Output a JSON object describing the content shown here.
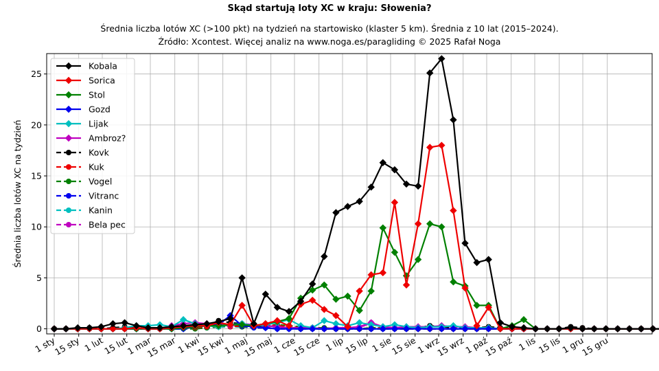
{
  "chart_data": {
    "type": "line",
    "title": "Skąd startują loty XC w kraju: Słowenia?",
    "subtitle_line1": "Średnia liczba lotów XC (>100 pkt) na tydzień na startowisko (klaster 5 km). Średnia z 10 lat (2015–2024).",
    "subtitle_line2": "Źródło: Xcontest. Więcej analiz na www.noga.es/paragliding © 2025 Rafał Noga",
    "ylabel": "Średnia liczba lotów XC na tydzień",
    "xlabel": "",
    "ylim": [
      -0.5,
      27
    ],
    "yticks": [
      0,
      5,
      10,
      15,
      20,
      25
    ],
    "grid": true,
    "legend_position": "top-left",
    "x_ticks": [
      "1 sty",
      "15 sty",
      "1 lut",
      "15 lut",
      "1 mar",
      "15 mar",
      "1 kwi",
      "15 kwi",
      "1 maj",
      "15 maj",
      "1 cze",
      "15 cze",
      "1 lip",
      "15 lip",
      "1 sie",
      "15 sie",
      "1 wrz",
      "15 wrz",
      "1 paź",
      "15 paź",
      "1 lis",
      "15 lis",
      "1 gru",
      "15 gru"
    ],
    "series": [
      {
        "name": "Kobala",
        "color": "#000000",
        "style": "solid",
        "marker": "diamond",
        "values": [
          0,
          0,
          0.1,
          0.1,
          0.2,
          0.5,
          0.6,
          0.3,
          0.1,
          0.1,
          0.2,
          0.3,
          0.4,
          0.5,
          0.7,
          1.0,
          5.0,
          0.5,
          3.4,
          2.1,
          1.7,
          2.7,
          4.4,
          7.1,
          11.4,
          12.0,
          12.5,
          13.9,
          16.3,
          15.6,
          14.2,
          14.0,
          25.1,
          26.5,
          20.5,
          8.4,
          6.5,
          6.8,
          0.6,
          0.2,
          0.1,
          0,
          0,
          0,
          0.1,
          0,
          0,
          0,
          0,
          0,
          0,
          0,
          0
        ]
      },
      {
        "name": "Sorica",
        "color": "#ee0000",
        "style": "solid",
        "marker": "diamond",
        "values": [
          0,
          0,
          0,
          0,
          0,
          0,
          0,
          0.1,
          0,
          0,
          0.1,
          0.2,
          0.3,
          0.3,
          0.6,
          0.4,
          2.3,
          0.3,
          0.5,
          0.8,
          0.3,
          2.4,
          2.8,
          1.9,
          1.3,
          0.2,
          3.7,
          5.3,
          5.5,
          12.4,
          4.3,
          10.3,
          17.8,
          18.0,
          11.6,
          4.0,
          0.3,
          2.1,
          0,
          0,
          0,
          0,
          0,
          0,
          0,
          0,
          0,
          0,
          0,
          0,
          0,
          0,
          0
        ]
      },
      {
        "name": "Stol",
        "color": "#008000",
        "style": "solid",
        "marker": "diamond",
        "values": [
          0,
          0,
          0,
          0,
          0,
          0,
          0,
          0,
          0,
          0,
          0,
          0.1,
          0.2,
          0.3,
          0.3,
          0.4,
          0.4,
          0.3,
          0.5,
          0.7,
          1.0,
          3.0,
          3.8,
          4.3,
          2.9,
          3.2,
          1.8,
          3.7,
          9.9,
          7.5,
          5.2,
          6.8,
          10.3,
          10.0,
          4.6,
          4.2,
          2.3,
          2.3,
          0,
          0.3,
          0.9,
          0,
          0,
          0,
          0,
          0,
          0,
          0,
          0,
          0,
          0,
          0,
          0
        ]
      },
      {
        "name": "Gozd",
        "color": "#0000ee",
        "style": "solid",
        "marker": "diamond",
        "values": [
          0,
          0,
          0,
          0,
          0,
          0,
          0,
          0,
          0,
          0,
          0,
          0,
          0.2,
          0.3,
          0.4,
          1.3,
          0.3,
          0.2,
          0.1,
          0,
          0,
          0,
          0,
          0,
          0,
          0,
          0,
          0,
          0,
          0,
          0,
          0,
          0,
          0,
          0,
          0,
          0,
          0,
          0,
          0,
          0,
          0,
          0,
          0,
          0,
          0,
          0,
          0,
          0,
          0,
          0,
          0,
          0
        ]
      },
      {
        "name": "Lijak",
        "color": "#00bfbf",
        "style": "solid",
        "marker": "diamond",
        "values": [
          0,
          0,
          0,
          0,
          0,
          0,
          0.1,
          0.3,
          0.3,
          0.4,
          0.2,
          0.9,
          0.5,
          0.3,
          0.2,
          0.4,
          0.5,
          0.3,
          0.4,
          0.6,
          0.9,
          0.3,
          0.1,
          0.8,
          0.5,
          0.3,
          0.6,
          0.4,
          0.2,
          0.4,
          0.2,
          0.1,
          0.2,
          0.2,
          0.3,
          0.1,
          0.1,
          0.1,
          0,
          0,
          0,
          0,
          0,
          0,
          0,
          0,
          0,
          0,
          0,
          0,
          0,
          0,
          0
        ]
      },
      {
        "name": "Ambroz?",
        "color": "#bf00bf",
        "style": "solid",
        "marker": "diamond",
        "values": [
          0,
          0,
          0,
          0,
          0,
          0,
          0,
          0,
          0,
          0,
          0.3,
          0.5,
          0.6,
          0.5,
          0.4,
          0.3,
          0.5,
          0.4,
          0.3,
          0.2,
          0.1,
          0.1,
          0.1,
          0,
          0.1,
          0.1,
          0.2,
          0.6,
          0.2,
          0.1,
          0.2,
          0.2,
          0.2,
          0.3,
          0.2,
          0.2,
          0.1,
          0.1,
          0,
          0,
          0,
          0,
          0,
          0,
          0,
          0,
          0,
          0,
          0,
          0,
          0,
          0,
          0
        ]
      },
      {
        "name": "Kovk",
        "color": "#000000",
        "style": "dashed",
        "marker": "circle",
        "values": [
          0,
          0,
          0,
          0.1,
          0,
          0.1,
          0.2,
          0.1,
          0,
          0,
          0.1,
          0.2,
          0.2,
          0.3,
          0.8,
          0.6,
          0.5,
          0.2,
          0.3,
          0.2,
          0.1,
          0,
          0,
          0,
          0,
          0,
          0,
          0,
          0,
          0,
          0,
          0.1,
          0.3,
          0.2,
          0.1,
          0.1,
          0.1,
          0.2,
          0.1,
          0,
          0,
          0,
          0,
          0,
          0.2,
          0.1,
          0,
          0,
          0,
          0,
          0,
          0,
          0
        ]
      },
      {
        "name": "Kuk",
        "color": "#ee0000",
        "style": "dashed",
        "marker": "circle",
        "values": [
          0,
          0,
          0,
          0,
          0,
          0,
          0,
          0,
          0,
          0,
          0.1,
          0.2,
          0.1,
          0.2,
          0.5,
          0.2,
          0.3,
          0.3,
          0.4,
          0.3,
          0.2,
          0.1,
          0.1,
          0,
          0,
          0,
          0,
          0,
          0.1,
          0,
          0,
          0,
          0,
          0,
          0,
          0,
          0,
          0,
          0,
          0,
          0,
          0,
          0,
          0,
          0,
          0,
          0,
          0,
          0,
          0,
          0,
          0,
          0
        ]
      },
      {
        "name": "Vogel",
        "color": "#008000",
        "style": "dashed",
        "marker": "circle",
        "values": [
          0,
          0,
          0,
          0,
          0,
          0,
          0,
          0,
          0,
          0,
          0,
          0,
          0,
          0.1,
          0.2,
          0.3,
          0.2,
          0.2,
          0.3,
          0.4,
          0.3,
          0.2,
          0.1,
          0.1,
          0,
          0,
          0,
          0.1,
          0.1,
          0.1,
          0,
          0,
          0,
          0,
          0,
          0,
          0,
          0,
          0,
          0,
          0,
          0,
          0,
          0,
          0,
          0,
          0,
          0,
          0,
          0,
          0,
          0,
          0
        ]
      },
      {
        "name": "Vitranc",
        "color": "#0000ee",
        "style": "dashed",
        "marker": "circle",
        "values": [
          0,
          0,
          0,
          0,
          0,
          0,
          0,
          0,
          0,
          0,
          0,
          0,
          0.1,
          0.1,
          0.2,
          0.4,
          0.2,
          0.1,
          0.1,
          0,
          0,
          0,
          0,
          0,
          0,
          0,
          0,
          0,
          0,
          0,
          0,
          0,
          0,
          0,
          0,
          0,
          0,
          0,
          0,
          0,
          0,
          0,
          0,
          0,
          0,
          0,
          0,
          0,
          0,
          0,
          0,
          0,
          0
        ]
      },
      {
        "name": "Kanin",
        "color": "#00bfbf",
        "style": "dashed",
        "marker": "circle",
        "values": [
          0,
          0,
          0,
          0,
          0,
          0,
          0,
          0,
          0,
          0,
          0,
          0,
          0,
          0.1,
          0.2,
          0.2,
          0.2,
          0.1,
          0.1,
          0,
          0,
          0,
          0,
          0,
          0,
          0,
          0,
          0,
          0,
          0,
          0,
          0,
          0,
          0,
          0,
          0,
          0,
          0,
          0,
          0,
          0,
          0,
          0,
          0,
          0,
          0,
          0,
          0,
          0,
          0,
          0,
          0,
          0
        ]
      },
      {
        "name": "Bela pec",
        "color": "#bf00bf",
        "style": "dashed",
        "marker": "circle",
        "values": [
          0,
          0,
          0,
          0,
          0,
          0,
          0,
          0,
          0,
          0,
          0.2,
          0.3,
          0.2,
          0.2,
          0.2,
          0.2,
          0.2,
          0.3,
          0.2,
          0.2,
          0.1,
          0.1,
          0,
          0,
          0,
          0,
          0.1,
          0.6,
          0.1,
          0.1,
          0.1,
          0.1,
          0,
          0,
          0,
          0,
          0,
          0,
          0,
          0,
          0,
          0,
          0,
          0,
          0,
          0,
          0,
          0,
          0,
          0,
          0,
          0,
          0
        ]
      }
    ]
  }
}
